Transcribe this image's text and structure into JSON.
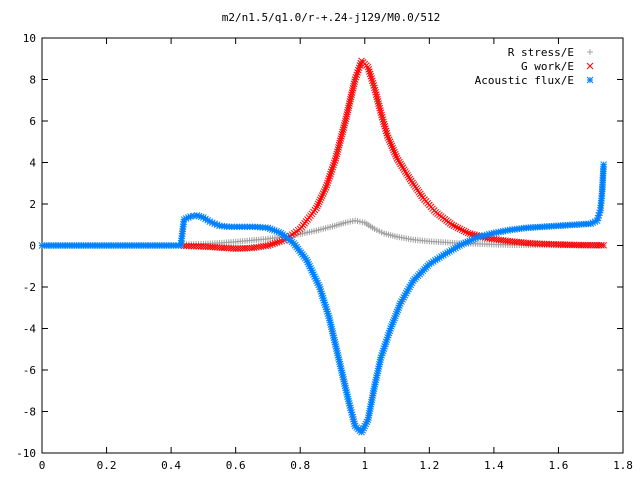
{
  "chart_data": {
    "type": "scatter",
    "title": "m2/n1.5/q1.0/r-+.24-j129/M0.0/512",
    "xlabel": "",
    "ylabel": "",
    "xlim": [
      0,
      1.8
    ],
    "ylim": [
      -10,
      10
    ],
    "x_ticks": [
      "0",
      "0.2",
      "0.4",
      "0.6",
      "0.8",
      "1",
      "1.2",
      "1.4",
      "1.6",
      "1.8"
    ],
    "y_ticks": [
      "-10",
      "-8",
      "-6",
      "-4",
      "-2",
      "0",
      "2",
      "4",
      "6",
      "8",
      "10"
    ],
    "grid": false,
    "legend_position": "top-right",
    "series": [
      {
        "name": "R stress/E",
        "marker": "plus",
        "color": "#a0a0a0",
        "points": [
          [
            0.44,
            0.05
          ],
          [
            0.5,
            0.08
          ],
          [
            0.55,
            0.12
          ],
          [
            0.6,
            0.18
          ],
          [
            0.65,
            0.25
          ],
          [
            0.7,
            0.32
          ],
          [
            0.75,
            0.42
          ],
          [
            0.8,
            0.55
          ],
          [
            0.85,
            0.72
          ],
          [
            0.9,
            0.92
          ],
          [
            0.94,
            1.1
          ],
          [
            0.97,
            1.2
          ],
          [
            1.0,
            1.1
          ],
          [
            1.03,
            0.8
          ],
          [
            1.06,
            0.58
          ],
          [
            1.1,
            0.42
          ],
          [
            1.15,
            0.28
          ],
          [
            1.2,
            0.2
          ],
          [
            1.25,
            0.15
          ],
          [
            1.3,
            0.1
          ],
          [
            1.35,
            0.08
          ],
          [
            1.4,
            0.05
          ],
          [
            1.45,
            0.03
          ],
          [
            1.5,
            0.02
          ],
          [
            1.55,
            0.02
          ],
          [
            1.6,
            0.01
          ],
          [
            1.65,
            0.01
          ],
          [
            1.7,
            0.01
          ],
          [
            1.74,
            0.01
          ]
        ]
      },
      {
        "name": "G work/E",
        "marker": "cross",
        "color": "#ff0000",
        "points": [
          [
            0.44,
            -0.02
          ],
          [
            0.5,
            -0.05
          ],
          [
            0.55,
            -0.1
          ],
          [
            0.6,
            -0.15
          ],
          [
            0.65,
            -0.12
          ],
          [
            0.7,
            0.0
          ],
          [
            0.75,
            0.25
          ],
          [
            0.8,
            0.8
          ],
          [
            0.85,
            1.8
          ],
          [
            0.88,
            2.8
          ],
          [
            0.91,
            4.2
          ],
          [
            0.94,
            6.0
          ],
          [
            0.97,
            8.0
          ],
          [
            0.99,
            8.9
          ],
          [
            1.01,
            8.6
          ],
          [
            1.03,
            7.6
          ],
          [
            1.05,
            6.4
          ],
          [
            1.07,
            5.3
          ],
          [
            1.1,
            4.2
          ],
          [
            1.14,
            3.2
          ],
          [
            1.18,
            2.3
          ],
          [
            1.22,
            1.6
          ],
          [
            1.27,
            1.0
          ],
          [
            1.32,
            0.6
          ],
          [
            1.38,
            0.35
          ],
          [
            1.45,
            0.2
          ],
          [
            1.52,
            0.1
          ],
          [
            1.6,
            0.05
          ],
          [
            1.67,
            0.02
          ],
          [
            1.74,
            0.01
          ]
        ]
      },
      {
        "name": "Acoustic flux/E",
        "marker": "star",
        "color": "#0080ff",
        "points": [
          [
            0.0,
            0.0
          ],
          [
            0.05,
            0.0
          ],
          [
            0.1,
            0.0
          ],
          [
            0.15,
            0.0
          ],
          [
            0.2,
            0.0
          ],
          [
            0.25,
            0.0
          ],
          [
            0.3,
            0.0
          ],
          [
            0.35,
            0.0
          ],
          [
            0.4,
            0.0
          ],
          [
            0.43,
            0.0
          ],
          [
            0.44,
            1.25
          ],
          [
            0.46,
            1.4
          ],
          [
            0.48,
            1.45
          ],
          [
            0.5,
            1.35
          ],
          [
            0.52,
            1.15
          ],
          [
            0.55,
            0.95
          ],
          [
            0.58,
            0.9
          ],
          [
            0.62,
            0.9
          ],
          [
            0.66,
            0.9
          ],
          [
            0.7,
            0.85
          ],
          [
            0.74,
            0.6
          ],
          [
            0.78,
            0.1
          ],
          [
            0.82,
            -0.7
          ],
          [
            0.86,
            -2.0
          ],
          [
            0.89,
            -3.5
          ],
          [
            0.92,
            -5.5
          ],
          [
            0.95,
            -7.5
          ],
          [
            0.97,
            -8.7
          ],
          [
            0.99,
            -9.0
          ],
          [
            1.01,
            -8.4
          ],
          [
            1.03,
            -6.8
          ],
          [
            1.05,
            -5.4
          ],
          [
            1.08,
            -4.0
          ],
          [
            1.11,
            -2.8
          ],
          [
            1.15,
            -1.7
          ],
          [
            1.2,
            -0.9
          ],
          [
            1.25,
            -0.4
          ],
          [
            1.3,
            0.05
          ],
          [
            1.35,
            0.4
          ],
          [
            1.4,
            0.6
          ],
          [
            1.45,
            0.75
          ],
          [
            1.5,
            0.85
          ],
          [
            1.55,
            0.9
          ],
          [
            1.6,
            0.95
          ],
          [
            1.65,
            1.0
          ],
          [
            1.7,
            1.05
          ],
          [
            1.72,
            1.2
          ],
          [
            1.73,
            1.7
          ],
          [
            1.735,
            2.5
          ],
          [
            1.74,
            3.9
          ]
        ]
      }
    ]
  }
}
